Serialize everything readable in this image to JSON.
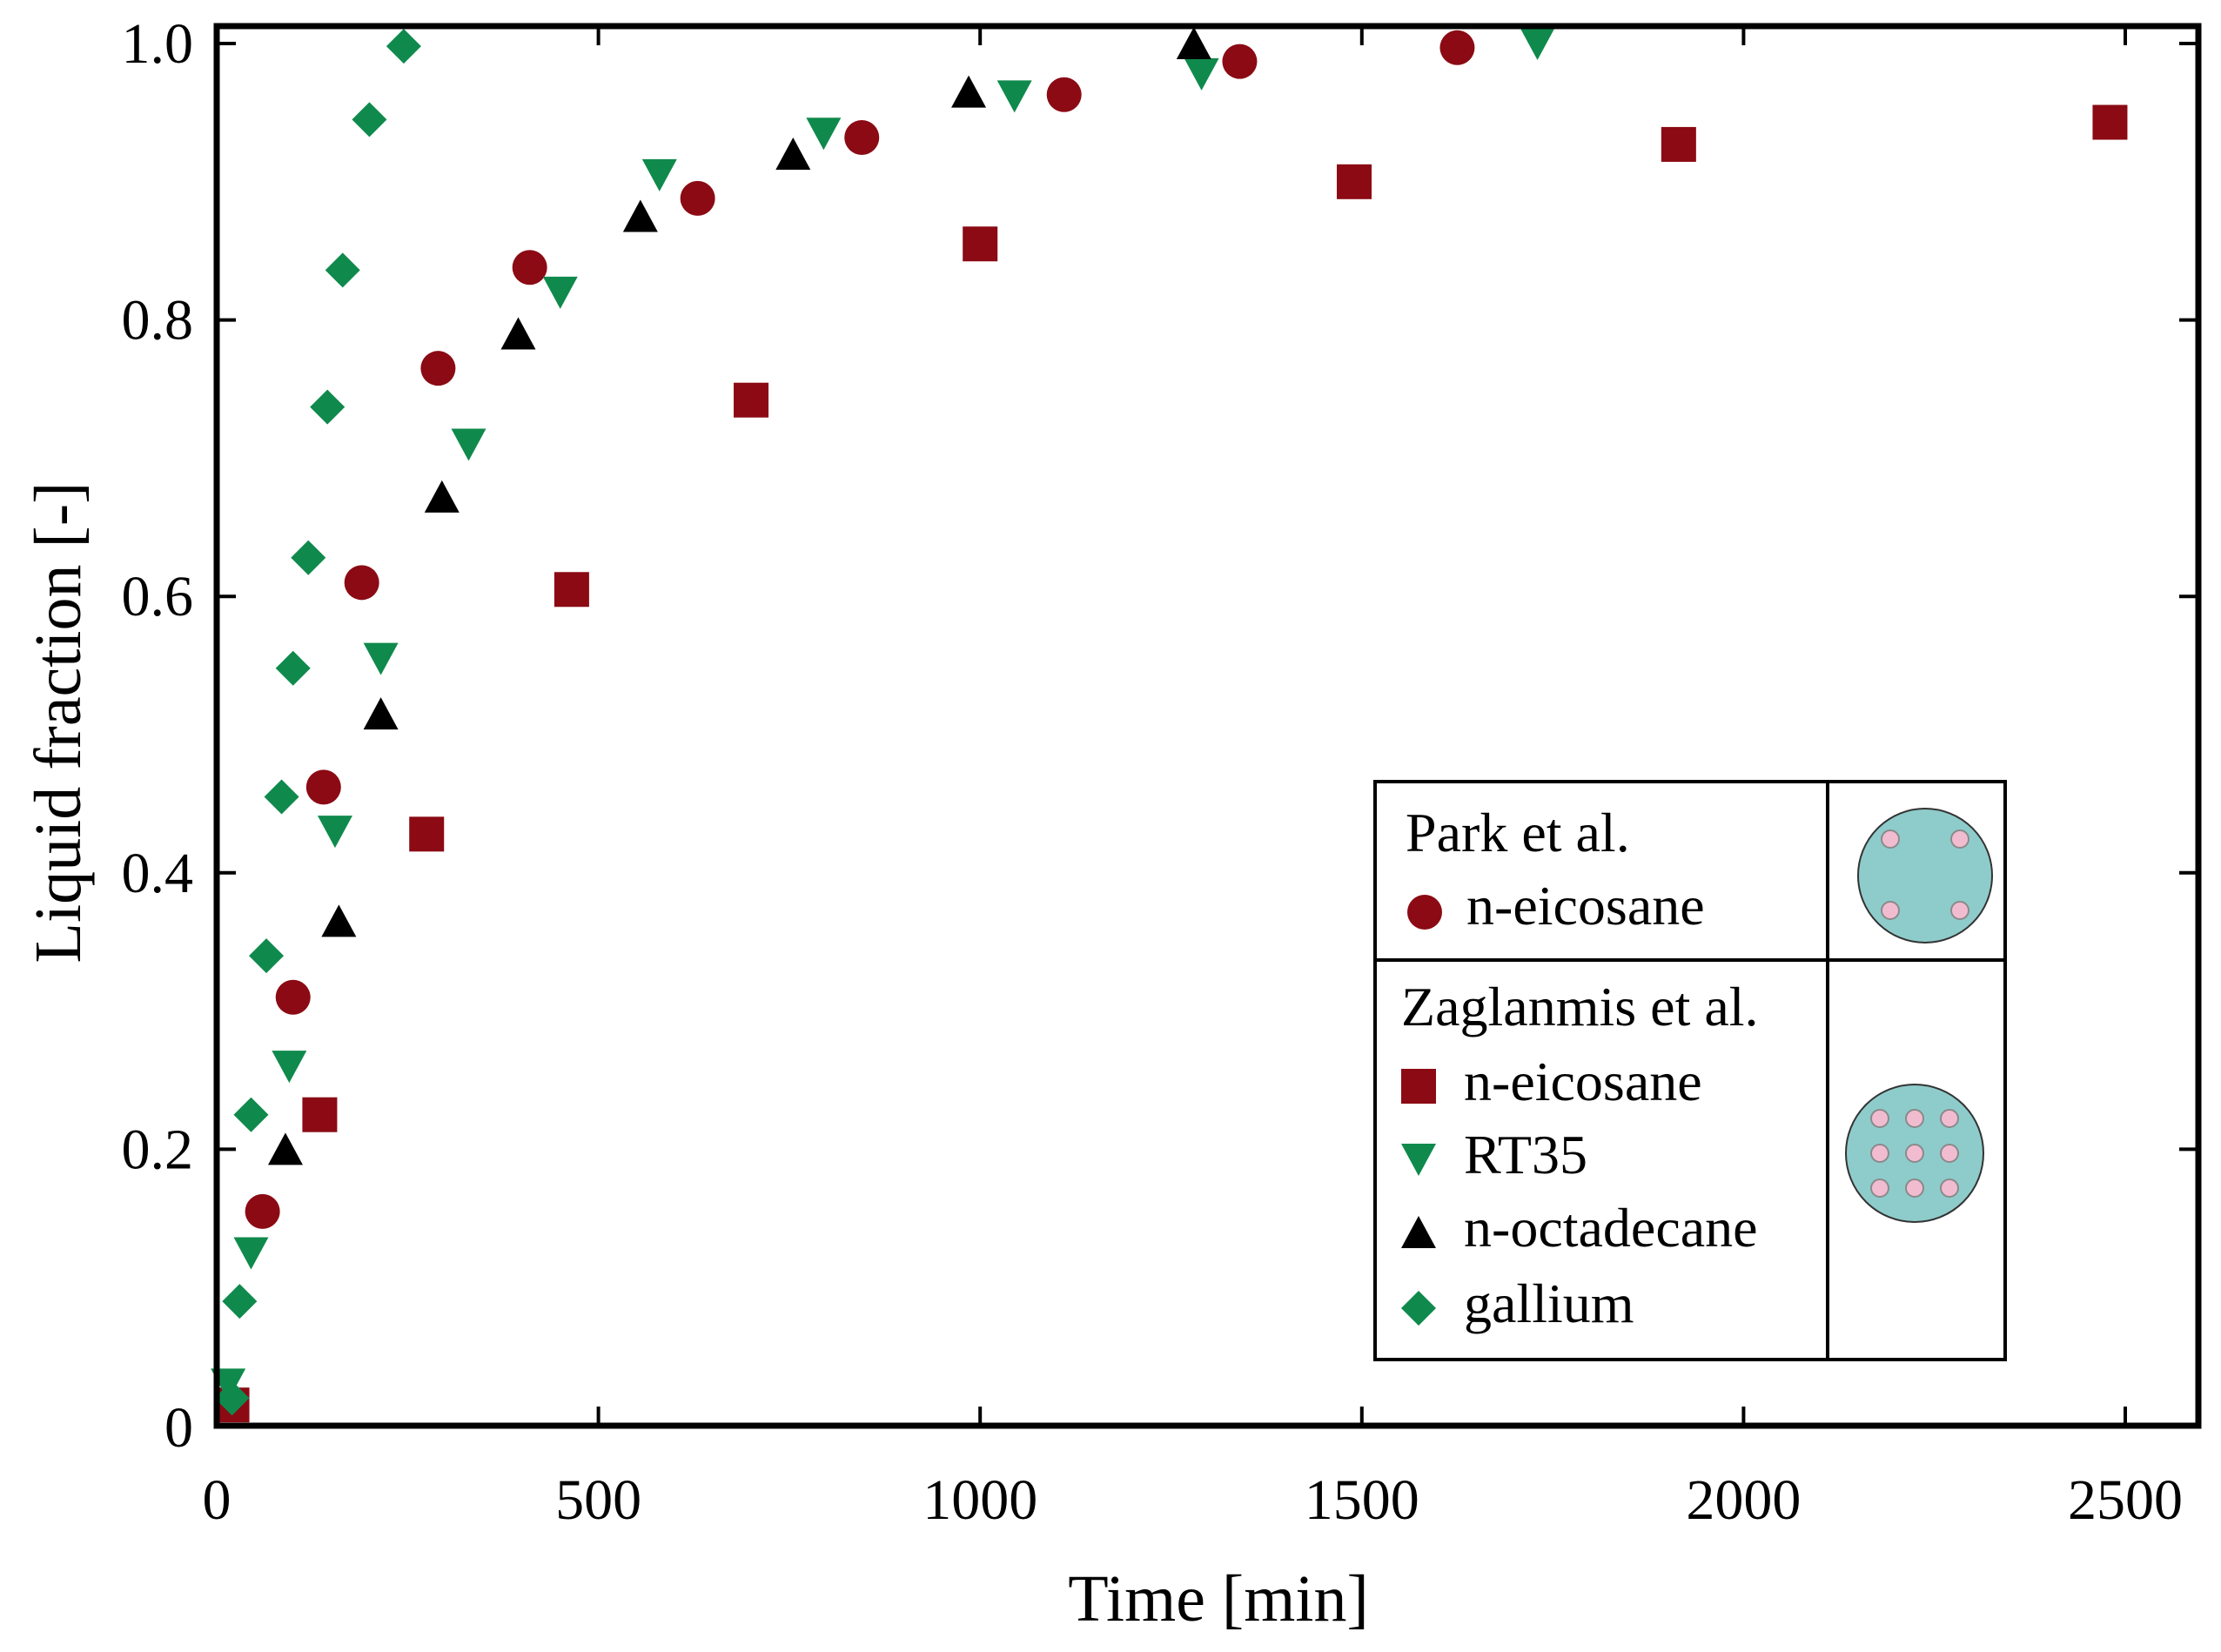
{
  "chart_data": {
    "type": "scatter",
    "title": "",
    "xlabel": "Time [min]",
    "ylabel": "Liquid fraction [-]",
    "xlim": [
      0,
      2500
    ],
    "ylim": [
      0,
      1.0
    ],
    "xticks": [
      0,
      500,
      1000,
      1500,
      2000,
      2500
    ],
    "xtick_labels": [
      "0",
      "500",
      "1000",
      "1500",
      "2000",
      "2500"
    ],
    "yticks": [
      0,
      0.2,
      0.4,
      0.6,
      0.8,
      1.0
    ],
    "ytick_labels": [
      "0",
      "0.2",
      "0.4",
      "0.6",
      "0.8",
      "1.0"
    ],
    "grid": false,
    "legend_position": "bottom-right",
    "legend_groups": [
      {
        "title": "Park et al.",
        "icon": "tube-4-holes-icon",
        "entries": [
          "n-eicosane"
        ]
      },
      {
        "title": "Zaglanmis et al.",
        "icon": "tube-9-holes-icon",
        "entries": [
          "n-eicosane",
          "RT35",
          "n-octadecane",
          "gallium"
        ]
      }
    ],
    "series": [
      {
        "name": "n-eicosane",
        "group": "Park et al.",
        "marker": "circle",
        "color": "#8b0a14",
        "x": [
          60,
          100,
          140,
          190,
          290,
          410,
          630,
          845,
          1110,
          1340,
          1625
        ],
        "y": [
          0.155,
          0.31,
          0.462,
          0.61,
          0.765,
          0.838,
          0.888,
          0.932,
          0.963,
          0.987,
          0.997
        ]
      },
      {
        "name": "n-eicosane",
        "group": "Zaglanmis et al.",
        "marker": "square",
        "color": "#8b0a14",
        "x": [
          20,
          135,
          275,
          465,
          700,
          1000,
          1490,
          1915,
          2480
        ],
        "y": [
          0.015,
          0.225,
          0.428,
          0.605,
          0.742,
          0.855,
          0.9,
          0.927,
          0.943
        ]
      },
      {
        "name": "RT35",
        "group": "Zaglanmis et al.",
        "marker": "triangle-down",
        "color": "#0f8a4c",
        "x": [
          15,
          45,
          95,
          155,
          215,
          330,
          450,
          580,
          795,
          1045,
          1290,
          1730
        ],
        "y": [
          0.03,
          0.125,
          0.26,
          0.43,
          0.555,
          0.71,
          0.82,
          0.905,
          0.935,
          0.962,
          0.978,
          1.0
        ]
      },
      {
        "name": "n-octadecane",
        "group": "Zaglanmis et al.",
        "marker": "triangle-up",
        "color": "#000000",
        "x": [
          90,
          160,
          215,
          295,
          395,
          555,
          755,
          985,
          1280
        ],
        "y": [
          0.2,
          0.365,
          0.515,
          0.672,
          0.79,
          0.875,
          0.92,
          0.965,
          1.0
        ]
      },
      {
        "name": "gallium",
        "group": "Zaglanmis et al.",
        "marker": "diamond",
        "color": "#0f8a4c",
        "x": [
          20,
          30,
          45,
          65,
          85,
          100,
          120,
          145,
          165,
          200,
          245
        ],
        "y": [
          0.02,
          0.09,
          0.225,
          0.34,
          0.455,
          0.548,
          0.628,
          0.737,
          0.836,
          0.945,
          0.998
        ]
      }
    ]
  }
}
